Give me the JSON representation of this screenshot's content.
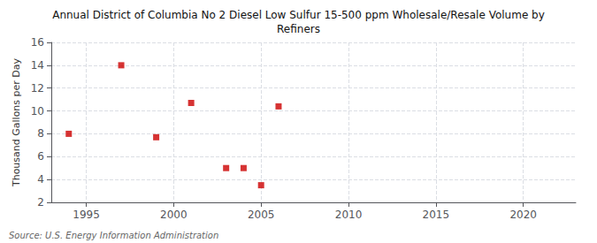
{
  "chart_data": {
    "type": "scatter",
    "title": "Annual District of Columbia No 2 Diesel Low Sulfur 15-500 ppm Wholesale/Resale Volume by\nRefiners",
    "ylabel": "Thousand Gallons per Day",
    "annotations": [
      "Source: U.S. Energy Information Administration"
    ],
    "x": [
      1994,
      1997,
      1999,
      2001,
      2003,
      2004,
      2005,
      2006
    ],
    "values": [
      8.0,
      14.0,
      7.7,
      10.7,
      5.0,
      5.0,
      3.5,
      10.4
    ],
    "color": "#cc0000",
    "marker": "square",
    "xlim": [
      1993,
      2023
    ],
    "xticks": [
      1995,
      2000,
      2005,
      2010,
      2015,
      2020
    ],
    "ylim": [
      2,
      16
    ],
    "yticks": [
      2,
      4,
      6,
      8,
      10,
      12,
      14,
      16
    ],
    "grid": true
  }
}
